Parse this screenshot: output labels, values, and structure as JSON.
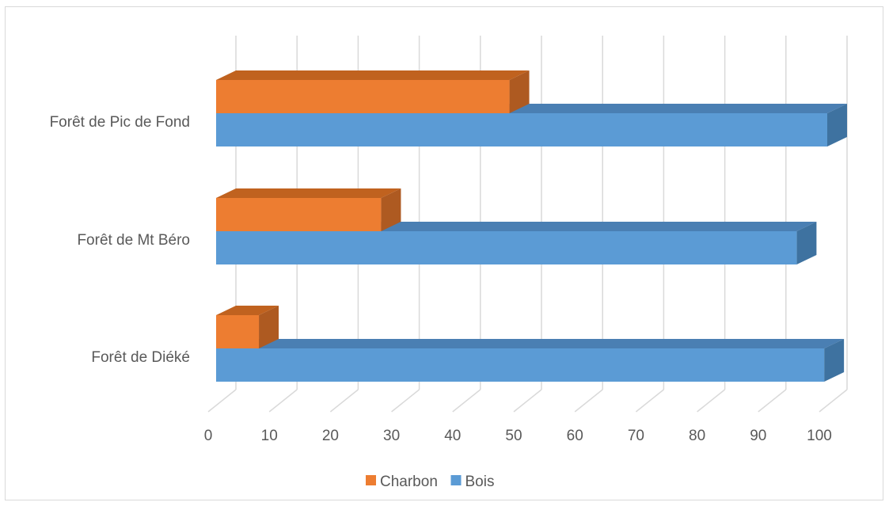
{
  "chart_data": {
    "type": "bar",
    "orientation": "horizontal",
    "three_d": true,
    "categories": [
      "Forêt de Pic de Fond",
      "Forêt de Mt Béro",
      "Forêt de Diéké"
    ],
    "series": [
      {
        "name": "Charbon",
        "values": [
          48,
          27,
          7
        ],
        "color": "#ed7d31",
        "side_color": "#ae5a21",
        "top_color": "#c0621f"
      },
      {
        "name": "Bois",
        "values": [
          100,
          95,
          99.5
        ],
        "color": "#5b9bd5",
        "side_color": "#3e72a0",
        "top_color": "#4a7fb3"
      }
    ],
    "xlim": [
      0,
      100
    ],
    "xticks": [
      "0",
      "10",
      "20",
      "30",
      "40",
      "50",
      "60",
      "70",
      "80",
      "90",
      "100"
    ],
    "grid": true,
    "legend_position": "bottom",
    "title": "",
    "xlabel": "",
    "ylabel": ""
  }
}
